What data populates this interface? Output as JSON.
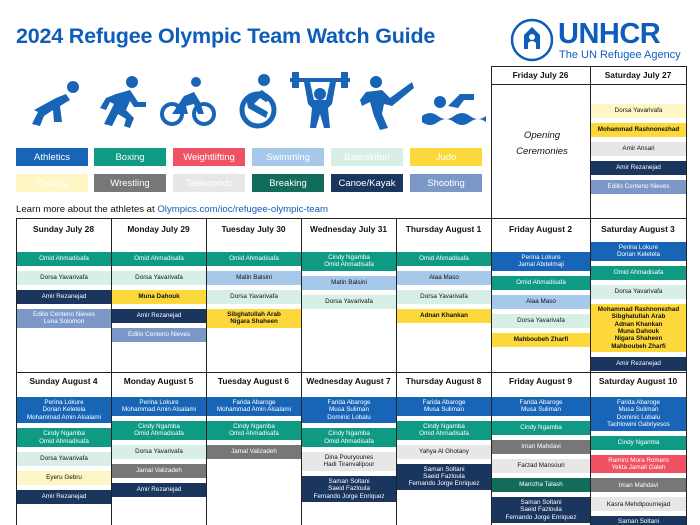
{
  "title": "2024 Refugee Olympic Team Watch Guide",
  "logo": {
    "name": "UNHCR",
    "tagline": "The UN Refugee Agency"
  },
  "legend": [
    {
      "label": "Athletics",
      "cls": "c-ath"
    },
    {
      "label": "Boxing",
      "cls": "c-box"
    },
    {
      "label": "Weightlifting",
      "cls": "c-wl"
    },
    {
      "label": "Swimming",
      "cls": "c-sw"
    },
    {
      "label": "Badminton",
      "cls": "c-bad"
    },
    {
      "label": "Judo",
      "cls": "c-judo"
    },
    {
      "label": "Cycling",
      "cls": "c-cyc"
    },
    {
      "label": "Wrestling",
      "cls": "c-wr"
    },
    {
      "label": "Taekwondo",
      "cls": "c-tkd"
    },
    {
      "label": "Breaking",
      "cls": "c-brk"
    },
    {
      "label": "Canoe/Kayak",
      "cls": "c-cano"
    },
    {
      "label": "Shooting",
      "cls": "c-sho"
    }
  ],
  "learn_more": {
    "text": "Learn more about the athletes at ",
    "link": "Olympics.com/ioc/refugee-olympic-team"
  },
  "opening": [
    "Opening",
    "Ceremonies"
  ],
  "days": [
    {
      "label": "Friday July 26",
      "events": []
    },
    {
      "label": "Saturday July 27",
      "events": [
        {
          "cls": "c-cyc",
          "names": [
            "Dorsa Yavarivafa"
          ]
        },
        {
          "cls": "c-judo",
          "names": [
            "Mohammad Rashnonezhad"
          ]
        },
        {
          "cls": "c-tkd",
          "names": [
            "Amir Ansari"
          ]
        },
        {
          "cls": "c-cano",
          "names": [
            "Amir Rezanejad"
          ]
        },
        {
          "cls": "c-sho",
          "names": [
            "Edilio Centeno Nieves"
          ]
        }
      ]
    },
    {
      "label": "Sunday July 28",
      "events": [
        {
          "cls": "c-box",
          "names": [
            "Omid Ahmadisafa"
          ]
        },
        {
          "cls": "c-bad",
          "names": [
            "Dorsa Yavarivafa"
          ]
        },
        {
          "cls": "c-cano",
          "names": [
            "Amir Rezanejad"
          ]
        },
        {
          "cls": "c-sho",
          "names": [
            "Edilio Centeno Nieves",
            "Luna Solomon"
          ]
        }
      ]
    },
    {
      "label": "Monday July 29",
      "events": [
        {
          "cls": "c-box",
          "names": [
            "Omid Ahmadisafa"
          ]
        },
        {
          "cls": "c-bad",
          "names": [
            "Dorsa Yavarivafa"
          ]
        },
        {
          "cls": "c-judo",
          "names": [
            "Muna Dahouk"
          ]
        },
        {
          "cls": "c-cano",
          "names": [
            "Amir Rezanejad"
          ]
        },
        {
          "cls": "c-sho",
          "names": [
            "Edilio Centeno Nieves"
          ]
        }
      ]
    },
    {
      "label": "Tuesday July 30",
      "events": [
        {
          "cls": "c-box",
          "names": [
            "Omid Ahmadisafa"
          ]
        },
        {
          "cls": "c-sw",
          "names": [
            "Matin Balsini"
          ]
        },
        {
          "cls": "c-bad",
          "names": [
            "Dorsa Yavarivafa"
          ]
        },
        {
          "cls": "c-judo",
          "names": [
            "Sibghatullah Arab",
            "Nigara Shaheen"
          ]
        }
      ]
    },
    {
      "label": "Wednesday July 31",
      "events": [
        {
          "cls": "c-box",
          "names": [
            "Cindy Ngamba",
            "Omid Ahmadisafa"
          ]
        },
        {
          "cls": "c-sw",
          "names": [
            "Matin Balsini"
          ]
        },
        {
          "cls": "c-bad",
          "names": [
            "Dorsa Yavarivafa"
          ]
        }
      ]
    },
    {
      "label": "Thursday August 1",
      "events": [
        {
          "cls": "c-box",
          "names": [
            "Omid Ahmadisafa"
          ]
        },
        {
          "cls": "c-sw",
          "names": [
            "Alaa Maso"
          ]
        },
        {
          "cls": "c-bad",
          "names": [
            "Dorsa Yavarivafa"
          ]
        },
        {
          "cls": "c-judo",
          "names": [
            "Adnan Khankan"
          ]
        }
      ]
    },
    {
      "label": "Friday August 2",
      "events": [
        {
          "cls": "c-ath",
          "names": [
            "Perina Lokure",
            "Jamal Abdelmaji"
          ]
        },
        {
          "cls": "c-box",
          "names": [
            "Omid Ahmadisafa"
          ]
        },
        {
          "cls": "c-sw",
          "names": [
            "Alaa Maso"
          ]
        },
        {
          "cls": "c-bad",
          "names": [
            "Dorsa Yavarivafa"
          ]
        },
        {
          "cls": "c-judo",
          "names": [
            "Mahboubeh Zharfi"
          ]
        }
      ]
    },
    {
      "label": "Saturday August 3",
      "events": [
        {
          "cls": "c-ath",
          "names": [
            "Perina Lokure",
            "Dorian Keletela"
          ]
        },
        {
          "cls": "c-box",
          "names": [
            "Omid Ahmadisafa"
          ]
        },
        {
          "cls": "c-bad",
          "names": [
            "Dorsa Yavarivafa"
          ]
        },
        {
          "cls": "c-judo",
          "names": [
            "Mohammad Rashnonezhad",
            "Sibghatullah Arab",
            "Adnan Khankan",
            "Muna Dahouk",
            "Nigara Shaheen",
            "Mahboubeh Zharfi"
          ]
        },
        {
          "cls": "c-cano",
          "names": [
            "Amir Rezanejad"
          ]
        }
      ]
    },
    {
      "label": "Sunday August 4",
      "events": [
        {
          "cls": "c-ath",
          "names": [
            "Perina Lokure",
            "Dorian Keletela",
            "Mohammad Amin Alsalami"
          ]
        },
        {
          "cls": "c-box",
          "names": [
            "Cindy Ngamba",
            "Omid Ahmadisafa"
          ]
        },
        {
          "cls": "c-bad",
          "names": [
            "Dorsa Yavarivafa"
          ]
        },
        {
          "cls": "c-cyc",
          "names": [
            "Eyeru Gebru"
          ]
        },
        {
          "cls": "c-cano",
          "names": [
            "Amir Rezanejad"
          ]
        }
      ]
    },
    {
      "label": "Monday August 5",
      "events": [
        {
          "cls": "c-ath",
          "names": [
            "Perina Lokure",
            "Mohammad Amin Alsalami"
          ]
        },
        {
          "cls": "c-box",
          "names": [
            "Cindy Ngamba",
            "Omid Ahmadisafa"
          ]
        },
        {
          "cls": "c-bad",
          "names": [
            "Dorsa Yavarivafa"
          ]
        },
        {
          "cls": "c-wr",
          "names": [
            "Jamal Valizadeh"
          ]
        },
        {
          "cls": "c-cano",
          "names": [
            "Amir Rezanejad"
          ]
        }
      ]
    },
    {
      "label": "Tuesday August 6",
      "events": [
        {
          "cls": "c-ath",
          "names": [
            "Farida Abaroge",
            "Mohammad Amin Alsalami"
          ]
        },
        {
          "cls": "c-box",
          "names": [
            "Cindy Ngamba",
            "Omid Ahmadisafa"
          ]
        },
        {
          "cls": "c-wr",
          "names": [
            "Jamal Valizadeh"
          ]
        }
      ]
    },
    {
      "label": "Wednesday August 7",
      "events": [
        {
          "cls": "c-ath",
          "names": [
            "Farida Abaroge",
            "Musa Suliman",
            "Dominic Lobalu"
          ]
        },
        {
          "cls": "c-box",
          "names": [
            "Cindy Ngamba",
            "Omid Ahmadisafa"
          ]
        },
        {
          "cls": "c-tkd",
          "names": [
            "Dina Pouryounes",
            "Hadi Tiranvalipour"
          ]
        },
        {
          "cls": "c-cano",
          "names": [
            "Saman Soltani",
            "Saeid Fazloula",
            "Fernando Jorge Enriquez"
          ]
        }
      ]
    },
    {
      "label": "Thursday August 8",
      "events": [
        {
          "cls": "c-ath",
          "names": [
            "Farida Abaroge",
            "Musa Suliman"
          ]
        },
        {
          "cls": "c-box",
          "names": [
            "Cindy Ngamba",
            "Omid Ahmadisafa"
          ]
        },
        {
          "cls": "c-tkd",
          "names": [
            "Yahya Al Ghotany"
          ]
        },
        {
          "cls": "c-cano",
          "names": [
            "Saman Soltani",
            "Saeid Fazloula",
            "Fernando Jorge Enriquez"
          ]
        }
      ]
    },
    {
      "label": "Friday August 9",
      "events": [
        {
          "cls": "c-ath",
          "names": [
            "Farida Abaroge",
            "Musa Suliman"
          ]
        },
        {
          "cls": "c-box",
          "names": [
            "Cindy Ngamba"
          ]
        },
        {
          "cls": "c-wr",
          "names": [
            "Iman Mahdavi"
          ]
        },
        {
          "cls": "c-tkd",
          "names": [
            "Farzad Mansouri"
          ]
        },
        {
          "cls": "c-brk",
          "names": [
            "Manizha Talash"
          ]
        },
        {
          "cls": "c-cano",
          "names": [
            "Saman Soltani",
            "Saeid Fazloula",
            "Fernando Jorge Enriquez"
          ]
        }
      ]
    },
    {
      "label": "Saturday August 10",
      "events": [
        {
          "cls": "c-ath",
          "names": [
            "Farida Abaroge",
            "Musa Suliman",
            "Dominic Lobalu",
            "Tachlowini Gabriyesos"
          ]
        },
        {
          "cls": "c-box",
          "names": [
            "Cindy Ngamba"
          ]
        },
        {
          "cls": "c-wl",
          "names": [
            "Ramiro Mora Romero",
            "Yekta Jamali Galeh"
          ]
        },
        {
          "cls": "c-wr",
          "names": [
            "Iman Mahdavi"
          ]
        },
        {
          "cls": "c-tkd",
          "names": [
            "Kasra Mehdipournejad"
          ]
        },
        {
          "cls": "c-cano",
          "names": [
            "Saman Soltani",
            "Saeid Fazloula"
          ]
        }
      ]
    }
  ],
  "icon_names": [
    "athletics-icon",
    "running-icon",
    "cycling-icon",
    "wheelchair-icon",
    "weightlifting-icon",
    "taekwondo-icon",
    "swimming-icon"
  ]
}
